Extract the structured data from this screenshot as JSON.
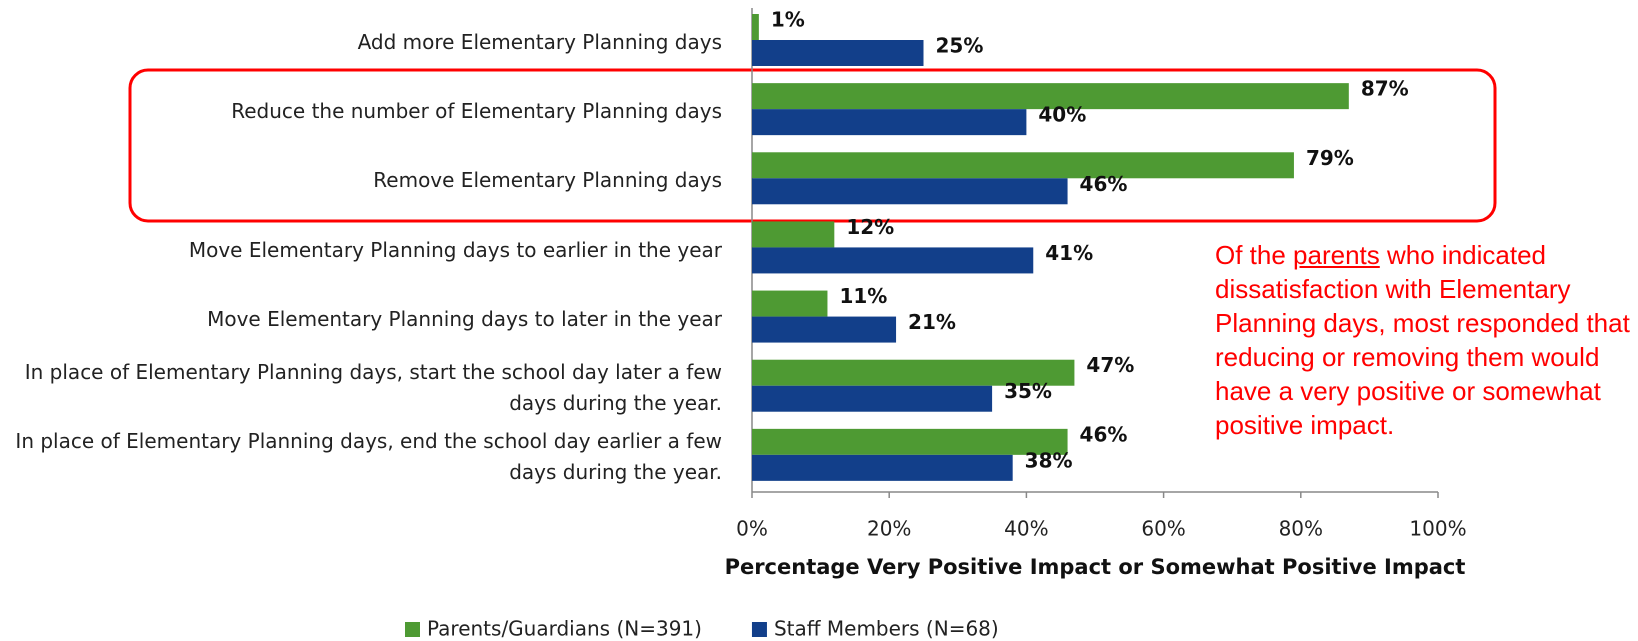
{
  "chart_data": {
    "type": "bar",
    "orientation": "horizontal",
    "categories": [
      "Add more Elementary Planning days",
      "Reduce the number of Elementary Planning days",
      "Remove Elementary Planning days",
      "Move Elementary Planning days to earlier in the year",
      "Move Elementary Planning days to later in the year",
      "In place of Elementary Planning days, start the school day later a few days during the year.",
      "In place of Elementary Planning days, end the school day earlier a few days during the year."
    ],
    "series": [
      {
        "name": "Parents/Guardians (N=391)",
        "color": "#4e9a33",
        "values": [
          1,
          87,
          79,
          12,
          11,
          47,
          46
        ],
        "value_labels": [
          "1%",
          "87%",
          "79%",
          "12%",
          "11%",
          "47%",
          "46%"
        ]
      },
      {
        "name": "Staff Members (N=68)",
        "color": "#123f8a",
        "values": [
          25,
          40,
          46,
          41,
          21,
          35,
          38
        ],
        "value_labels": [
          "25%",
          "40%",
          "46%",
          "41%",
          "21%",
          "35%",
          "38%"
        ]
      }
    ],
    "xlabel": "Percentage Very Positive Impact or Somewhat Positive Impact",
    "xlim": [
      0,
      100
    ],
    "xticks": [
      {
        "value": 0,
        "label": "0%"
      },
      {
        "value": 20,
        "label": "20%"
      },
      {
        "value": 40,
        "label": "40%"
      },
      {
        "value": 60,
        "label": "60%"
      },
      {
        "value": 80,
        "label": "80%"
      },
      {
        "value": 100,
        "label": "100%"
      }
    ],
    "legend": "bottom",
    "annotation_parts": [
      "Of the ",
      "parents",
      " who indicated dissatisfaction with Elementary Planning days, most responded that reducing or removing them would have a very positive or somewhat positive impact."
    ]
  }
}
